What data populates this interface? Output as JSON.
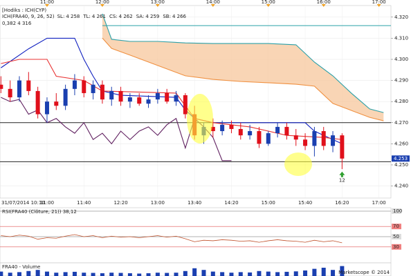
{
  "chart_data": {
    "type": "candlestick",
    "title": "[Hodiks : ICH(CYP)",
    "indicator_label": "ICH(FRA40, 9, 26, 52)",
    "indicator_values": [
      {
        "name": "SL:",
        "value": {
          "value": 4.258,
          "label": "4 258"
        },
        "color": "#e00000"
      },
      {
        "name": "TL:",
        "value": {
          "value": 4.261,
          "label": "4 261"
        },
        "color": "#1020c0"
      },
      {
        "name": "CS:",
        "value": {
          "value": 4.262,
          "label": "4 262"
        },
        "color": "#602060"
      },
      {
        "name": "SA:",
        "value": {
          "value": 4.259,
          "label": "4 259"
        },
        "color": "#f09040"
      },
      {
        "name": "SB:",
        "value": {
          "value": 4.266,
          "label": "4 266"
        },
        "color": "#2aa0a8"
      }
    ],
    "fib_level": {
      "value": 4.316,
      "label": "0,382 4 316",
      "color": "#2aa0a8",
      "from": "12:00"
    },
    "date_label": "31/07/2014 10:10",
    "xlim": [
      "10:09",
      "17:13"
    ],
    "xticks": [
      "11:00",
      "11:40",
      "12:20",
      "13:00",
      "13:40",
      "14:20",
      "15:00",
      "15:40",
      "16:20",
      "17:00"
    ],
    "top_ticks": [
      "11:00",
      "12:00",
      "13:00",
      "14:00",
      "15:00",
      "16:00",
      "17:00"
    ],
    "ylim": [
      4.2343,
      4.3255
    ],
    "yticks": [
      {
        "value": 4.24,
        "label": "4.240"
      },
      {
        "value": 4.25,
        "label": "4.250"
      },
      {
        "value": 4.26,
        "label": "4.260"
      },
      {
        "value": 4.27,
        "label": "4.270"
      },
      {
        "value": 4.28,
        "label": "4.280"
      },
      {
        "value": 4.29,
        "label": "4.290"
      },
      {
        "value": 4.3,
        "label": "4.300"
      },
      {
        "value": 4.31,
        "label": "4.310"
      },
      {
        "value": 4.32,
        "label": "4.320"
      }
    ],
    "up_color": "#1a3fb0",
    "down_color": "#e0101b",
    "candles": {
      "x": [
        "10:10",
        "10:20",
        "10:30",
        "10:40",
        "10:50",
        "11:00",
        "11:10",
        "11:20",
        "11:30",
        "11:40",
        "11:50",
        "12:00",
        "12:10",
        "12:20",
        "12:30",
        "12:40",
        "12:50",
        "13:00",
        "13:10",
        "13:20",
        "13:30",
        "13:40",
        "13:50",
        "14:00",
        "14:10",
        "14:20",
        "14:30",
        "14:40",
        "14:50",
        "15:00",
        "15:10",
        "15:20",
        "15:30",
        "15:40",
        "15:50",
        "16:00",
        "16:10",
        "16:20"
      ],
      "open": [
        4.288,
        4.286,
        4.282,
        4.29,
        4.285,
        4.274,
        4.28,
        4.278,
        4.286,
        4.29,
        4.284,
        4.288,
        4.281,
        4.285,
        4.28,
        4.282,
        4.279,
        4.281,
        4.284,
        4.28,
        4.283,
        4.274,
        4.264,
        4.268,
        4.266,
        4.269,
        4.267,
        4.264,
        4.266,
        4.26,
        4.265,
        4.268,
        4.264,
        4.262,
        4.259,
        4.266,
        4.259,
        4.264
      ],
      "high": [
        4.292,
        4.29,
        4.292,
        4.294,
        4.287,
        4.282,
        4.284,
        4.288,
        4.293,
        4.292,
        4.29,
        4.29,
        4.287,
        4.287,
        4.284,
        4.284,
        4.283,
        4.286,
        4.286,
        4.285,
        4.284,
        4.278,
        4.27,
        4.272,
        4.271,
        4.271,
        4.27,
        4.269,
        4.268,
        4.266,
        4.27,
        4.27,
        4.267,
        4.265,
        4.268,
        4.268,
        4.266,
        4.265
      ],
      "low": [
        4.284,
        4.28,
        4.28,
        4.283,
        4.272,
        4.27,
        4.276,
        4.276,
        4.283,
        4.282,
        4.281,
        4.279,
        4.278,
        4.278,
        4.277,
        4.278,
        4.277,
        4.279,
        4.279,
        4.278,
        4.272,
        4.262,
        4.26,
        4.263,
        4.264,
        4.265,
        4.262,
        4.262,
        4.258,
        4.259,
        4.263,
        4.262,
        4.259,
        4.257,
        4.254,
        4.257,
        4.256,
        4.248
      ],
      "close": [
        4.286,
        4.282,
        4.29,
        4.285,
        4.274,
        4.28,
        4.278,
        4.286,
        4.29,
        4.284,
        4.288,
        4.281,
        4.285,
        4.28,
        4.282,
        4.279,
        4.281,
        4.284,
        4.28,
        4.283,
        4.274,
        4.264,
        4.268,
        4.266,
        4.269,
        4.267,
        4.264,
        4.266,
        4.26,
        4.265,
        4.268,
        4.264,
        4.262,
        4.259,
        4.266,
        4.259,
        4.264,
        4.253
      ]
    },
    "lines": [
      {
        "color": "#2aa0a8",
        "x": [
          "12:00",
          "12:10",
          "12:30",
          "13:00",
          "13:30",
          "14:00",
          "14:30",
          "15:00",
          "15:30",
          "15:50",
          "16:10",
          "16:30",
          "16:50",
          "17:05"
        ],
        "values": [
          4.3216,
          4.3095,
          4.3085,
          4.3085,
          4.3078,
          4.3075,
          4.3075,
          4.3075,
          4.3069,
          4.2987,
          4.2922,
          4.284,
          4.2765,
          4.2748
        ]
      },
      {
        "color": "#f09040",
        "x": [
          "12:00",
          "12:10",
          "12:30",
          "13:00",
          "13:30",
          "14:00",
          "14:30",
          "15:00",
          "15:30",
          "15:50",
          "16:10",
          "16:30",
          "16:50",
          "17:05"
        ],
        "values": [
          4.3101,
          4.3052,
          4.302,
          4.2971,
          4.2922,
          4.2905,
          4.2895,
          4.2889,
          4.2882,
          4.2873,
          4.2791,
          4.2758,
          4.2725,
          4.2709
        ]
      },
      {
        "color": "#1020c0",
        "x": [
          "10:10",
          "10:40",
          "11:00",
          "11:30",
          "11:40",
          "11:50",
          "12:00",
          "12:20",
          "13:20",
          "13:30",
          "13:40",
          "14:00",
          "15:40",
          "15:50",
          "16:20"
        ],
        "values": [
          4.296,
          4.305,
          4.31,
          4.31,
          4.3,
          4.292,
          4.285,
          4.283,
          4.282,
          4.276,
          4.272,
          4.27,
          4.27,
          4.266,
          4.26
        ]
      },
      {
        "color": "#e83030",
        "x": [
          "10:10",
          "10:30",
          "11:00",
          "11:10",
          "11:40",
          "12:00",
          "13:20",
          "13:40",
          "14:00",
          "14:40",
          "15:20",
          "16:00",
          "16:20"
        ],
        "values": [
          4.298,
          4.3,
          4.3,
          4.292,
          4.29,
          4.285,
          4.284,
          4.272,
          4.27,
          4.268,
          4.264,
          4.263,
          4.262
        ]
      },
      {
        "color": "#602060",
        "x": [
          "10:10",
          "10:20",
          "10:30",
          "10:40",
          "10:50",
          "11:00",
          "11:10",
          "11:20",
          "11:30",
          "11:40",
          "11:50",
          "12:00",
          "12:10",
          "12:20",
          "12:30",
          "12:40",
          "12:50",
          "13:00",
          "13:10",
          "13:20",
          "13:30",
          "13:40",
          "13:50",
          "14:00",
          "14:10",
          "14:20"
        ],
        "values": [
          4.282,
          4.28,
          4.281,
          4.274,
          4.276,
          4.27,
          4.272,
          4.268,
          4.265,
          4.27,
          4.262,
          4.265,
          4.26,
          4.266,
          4.262,
          4.266,
          4.268,
          4.264,
          4.269,
          4.272,
          4.258,
          4.272,
          4.268,
          4.263,
          4.252,
          4.252
        ]
      }
    ],
    "levels": [
      {
        "value": 4.27,
        "color": "#222"
      },
      {
        "value": 4.2515,
        "color": "#222"
      }
    ],
    "last_price": {
      "value": 4.253,
      "label": "4.253"
    },
    "signal": {
      "x": "16:20",
      "value": 4.2455,
      "label": "12"
    },
    "rsi": {
      "title": "RSI(FRA40 (Clôture, 21)) 38,12",
      "ylim": [
        0,
        100
      ],
      "yticks": [
        100,
        70,
        50,
        30
      ],
      "values": [
        52,
        50,
        53,
        51,
        45,
        48,
        47,
        51,
        54,
        50,
        52,
        48,
        51,
        49,
        50,
        48,
        50,
        52,
        49,
        51,
        46,
        40,
        43,
        42,
        44,
        43,
        41,
        42,
        39,
        42,
        44,
        42,
        41,
        39,
        43,
        40,
        42,
        38
      ]
    },
    "volume": {
      "title": "FRA40 - Volume",
      "ylim": [
        0,
        100
      ],
      "values": [
        40,
        30,
        35,
        45,
        55,
        40,
        30,
        35,
        38,
        30,
        28,
        25,
        30,
        28,
        25,
        22,
        25,
        30,
        28,
        30,
        45,
        70,
        55,
        40,
        35,
        30,
        35,
        32,
        45,
        40,
        35,
        38,
        42,
        50,
        65,
        75,
        55,
        90
      ]
    },
    "copyright": "Marketscope © 2014"
  }
}
